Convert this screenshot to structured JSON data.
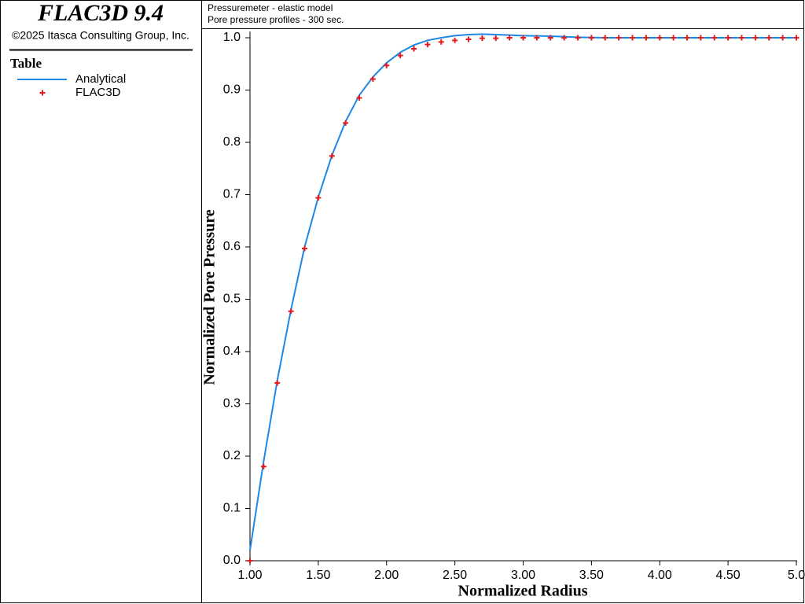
{
  "app": {
    "name": "FLAC3D 9.4",
    "copyright": "©2025 Itasca Consulting Group, Inc."
  },
  "chart_data": {
    "type": "line",
    "title": "Pressuremeter - elastic model",
    "subtitle": "Pore pressure profiles - 300 sec.",
    "legend_title": "Table",
    "x_label": "Normalized Radius",
    "y_label": "Normalized Pore Pressure",
    "xlim": [
      1,
      5
    ],
    "ylim": [
      0,
      1
    ],
    "xticks": [
      {
        "value": 1,
        "label": "1.00"
      },
      {
        "value": 1.5,
        "label": "1.50"
      },
      {
        "value": 2,
        "label": "2.00"
      },
      {
        "value": 2.5,
        "label": "2.50"
      },
      {
        "value": 3,
        "label": "3.00"
      },
      {
        "value": 3.5,
        "label": "3.50"
      },
      {
        "value": 4,
        "label": "4.00"
      },
      {
        "value": 4.5,
        "label": "4.50"
      },
      {
        "value": 5,
        "label": "5.0"
      }
    ],
    "yticks": [
      {
        "value": 0,
        "label": "0.0"
      },
      0.1,
      0.2,
      0.3,
      0.4,
      0.5,
      0.6,
      0.7,
      0.8,
      0.9,
      {
        "value": 1,
        "label": "1.0"
      }
    ],
    "series": [
      {
        "name": "Analytical",
        "color": "#1e88e5",
        "marker": "line",
        "x": [
          1.0,
          1.1,
          1.2,
          1.3,
          1.4,
          1.5,
          1.6,
          1.7,
          1.8,
          1.9,
          2.0,
          2.1,
          2.2,
          2.3,
          2.4,
          2.5,
          2.6,
          2.7,
          2.8,
          2.9,
          3.0,
          3.2,
          3.4,
          3.6,
          4.0,
          4.5,
          5.0
        ],
        "values": [
          0.02,
          0.19,
          0.345,
          0.48,
          0.6,
          0.695,
          0.775,
          0.84,
          0.89,
          0.925,
          0.952,
          0.972,
          0.986,
          0.995,
          1.0,
          1.004,
          1.006,
          1.007,
          1.006,
          1.005,
          1.004,
          1.003,
          1.001,
          1.0,
          1.0,
          1.0,
          1.0
        ]
      },
      {
        "name": "FLAC3D",
        "color": "#e41a1c",
        "marker": "plus",
        "x": [
          1.0,
          1.1,
          1.2,
          1.3,
          1.4,
          1.5,
          1.6,
          1.7,
          1.8,
          1.9,
          2.0,
          2.1,
          2.2,
          2.3,
          2.4,
          2.5,
          2.6,
          2.7,
          2.8,
          2.9,
          3.0,
          3.1,
          3.2,
          3.3,
          3.4,
          3.5,
          3.6,
          3.7,
          3.8,
          3.9,
          4.0,
          4.1,
          4.2,
          4.3,
          4.4,
          4.5,
          4.6,
          4.7,
          4.8,
          4.9,
          5.0
        ],
        "values": [
          0.0,
          0.18,
          0.34,
          0.477,
          0.597,
          0.694,
          0.774,
          0.837,
          0.885,
          0.921,
          0.947,
          0.966,
          0.979,
          0.987,
          0.992,
          0.995,
          0.997,
          0.999,
          0.999,
          1.0,
          1.0,
          1.0,
          1.0,
          1.0,
          1.0,
          1.0,
          1.0,
          1.0,
          1.0,
          1.0,
          1.0,
          1.0,
          1.0,
          1.0,
          1.0,
          1.0,
          1.0,
          1.0,
          1.0,
          1.0,
          1.0
        ]
      }
    ]
  }
}
